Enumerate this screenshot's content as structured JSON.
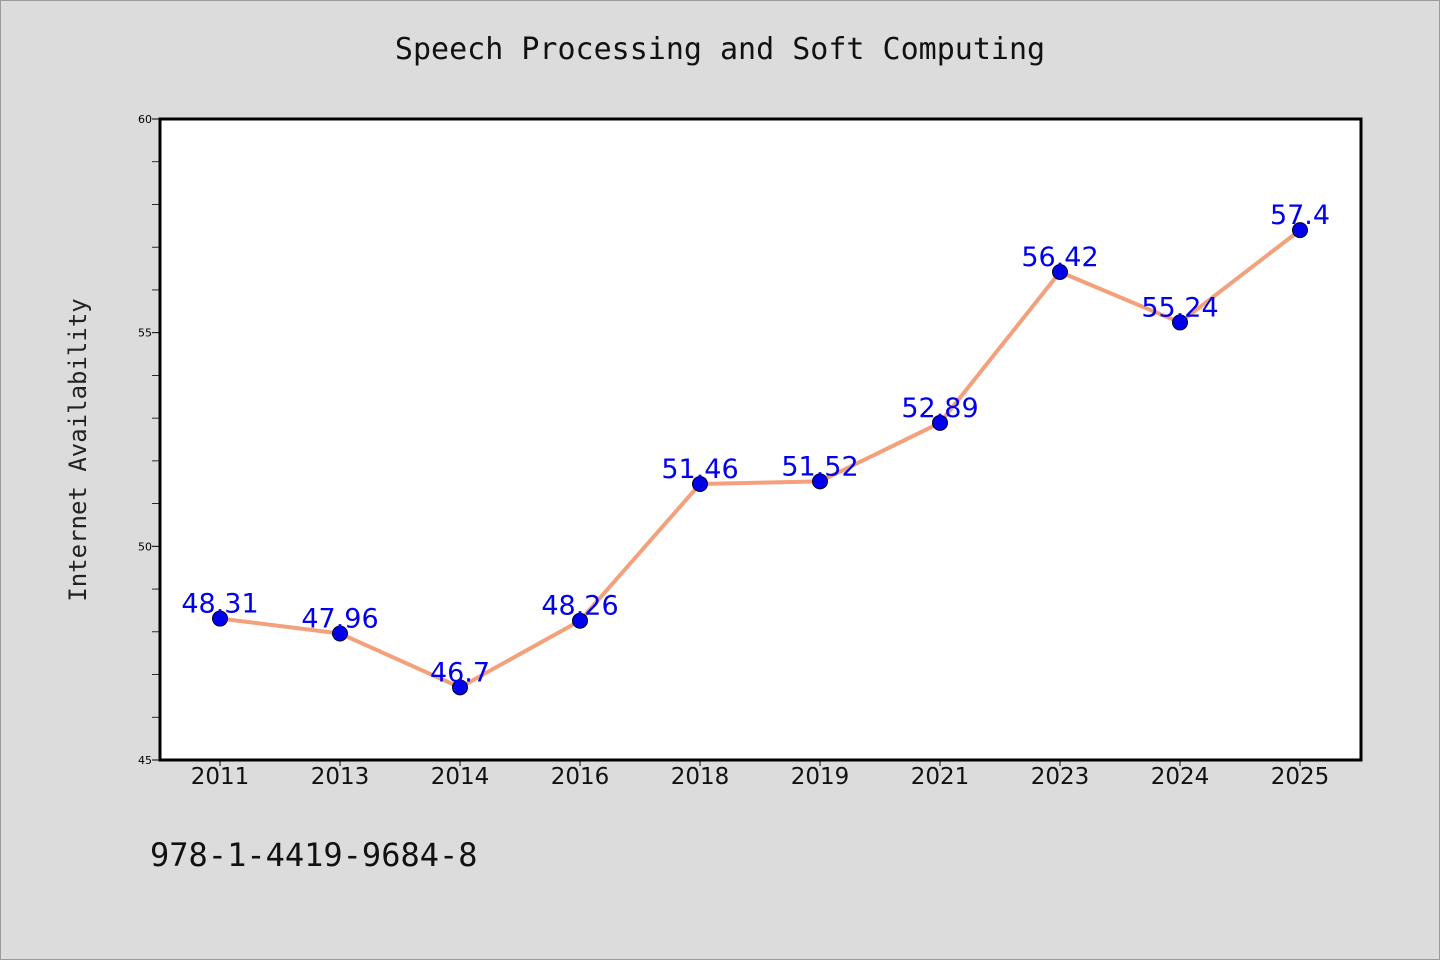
{
  "page": {
    "footnote": "978-1-4419-9684-8",
    "background": "#dcdcdc"
  },
  "chart_data": {
    "type": "line",
    "title": "Speech Processing and Soft Computing",
    "xlabel": "",
    "ylabel": "Internet Availability",
    "categories": [
      "2011",
      "2013",
      "2014",
      "2016",
      "2018",
      "2019",
      "2021",
      "2023",
      "2024",
      "2025"
    ],
    "series": [
      {
        "values": [
          48.31,
          47.96,
          46.7,
          48.26,
          51.46,
          51.52,
          52.89,
          56.42,
          55.24,
          57.4
        ],
        "data_labels": [
          "48.31",
          "47.96",
          "46.7",
          "48.26",
          "51.46",
          "51.52",
          "52.89",
          "56.42",
          "55.24",
          "57.4"
        ],
        "line_color": "#f4a07a",
        "marker_color": "#0000ee"
      }
    ],
    "ylim": [
      45,
      60
    ],
    "yticks": [
      "45",
      "50",
      "55",
      "60"
    ],
    "grid": false,
    "legend": "none",
    "label_color": "#0000ee"
  }
}
